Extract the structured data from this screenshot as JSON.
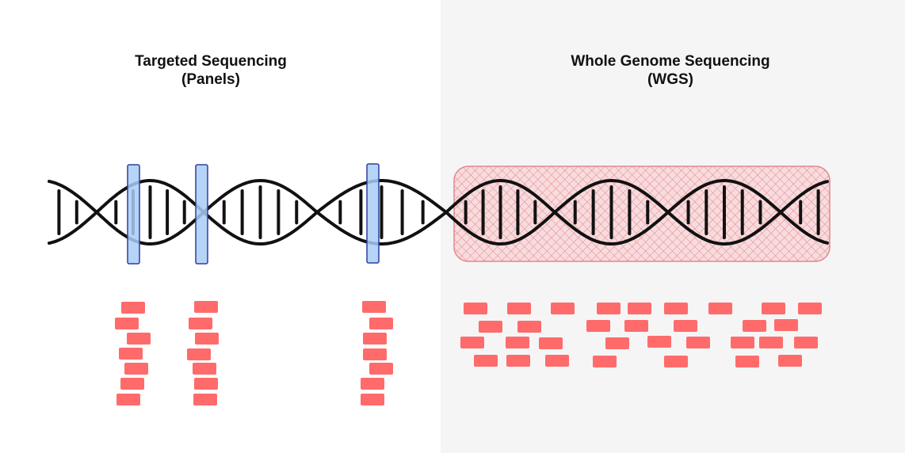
{
  "left_panel": {
    "title_line1": "Targeted Sequencing",
    "title_line2": "(Panels)"
  },
  "right_panel": {
    "title_line1": "Whole Genome Sequencing",
    "title_line2": "(WGS)"
  },
  "colors": {
    "strand": "#111111",
    "target_region_fill": "#a8cdf7",
    "target_region_stroke": "#2f3f9e",
    "wgs_region_stroke": "#e07a82",
    "read": "#ff6b6b",
    "right_background": "#f5f5f5"
  }
}
